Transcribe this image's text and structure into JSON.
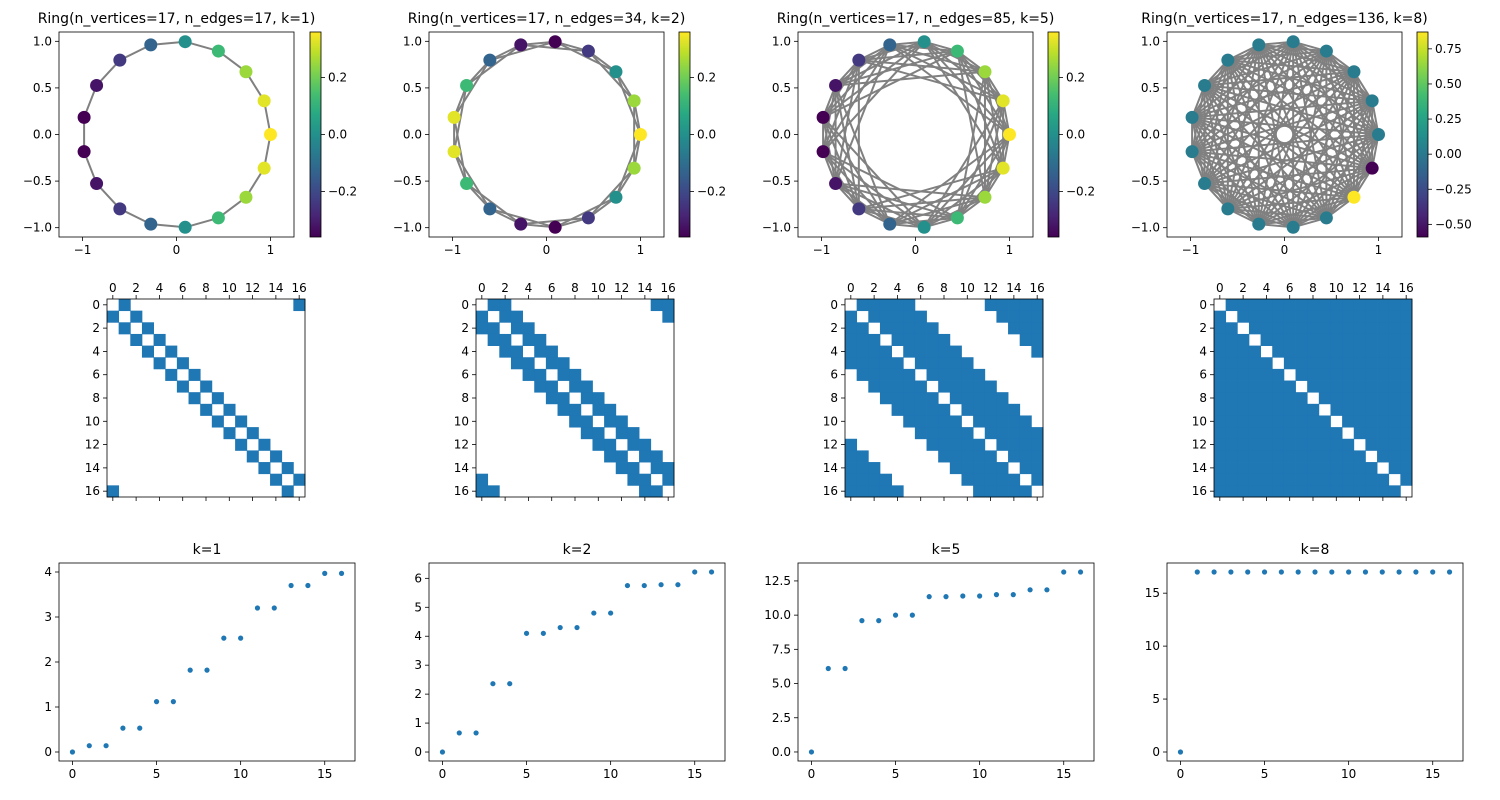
{
  "chart_data": [
    {
      "type": "scatter",
      "subtype": "ring-graph",
      "title": "Ring(n_vertices=17, n_edges=17, k=1)",
      "n_vertices": 17,
      "k": 1,
      "node_values": [
        0.36,
        0.33,
        0.25,
        0.13,
        0.0,
        -0.13,
        -0.24,
        -0.32,
        -0.36,
        -0.36,
        -0.32,
        -0.24,
        -0.13,
        0.0,
        0.13,
        0.25,
        0.33
      ],
      "xlim": [
        -1.25,
        1.25
      ],
      "ylim": [
        -1.1,
        1.1
      ],
      "xticks": [
        "−1",
        "0",
        "1"
      ],
      "yticks": [
        "−1.0",
        "−0.5",
        "0.0",
        "0.5",
        "1.0"
      ],
      "edge_color": "#808080",
      "colormap": "viridis",
      "colorbar": {
        "range": [
          -0.36,
          0.36
        ],
        "ticks": [
          -0.2,
          0.0,
          0.2
        ],
        "tick_labels": [
          "−0.2",
          "0.0",
          "0.2"
        ]
      }
    },
    {
      "type": "scatter",
      "subtype": "ring-graph",
      "title": "Ring(n_vertices=17, n_edges=34, k=2)",
      "n_vertices": 17,
      "k": 2,
      "node_values": [
        0.36,
        0.25,
        0.0,
        -0.24,
        -0.36,
        -0.32,
        -0.13,
        0.13,
        0.33,
        0.33,
        0.13,
        -0.13,
        -0.32,
        -0.36,
        -0.24,
        0.0,
        0.25
      ],
      "xlim": [
        -1.25,
        1.25
      ],
      "ylim": [
        -1.1,
        1.1
      ],
      "xticks": [
        "−1",
        "0",
        "1"
      ],
      "yticks": [
        "−1.0",
        "−0.5",
        "0.0",
        "0.5",
        "1.0"
      ],
      "edge_color": "#808080",
      "colormap": "viridis",
      "colorbar": {
        "range": [
          -0.36,
          0.36
        ],
        "ticks": [
          -0.2,
          0.0,
          0.2
        ],
        "tick_labels": [
          "−0.2",
          "0.0",
          "0.2"
        ]
      }
    },
    {
      "type": "scatter",
      "subtype": "ring-graph",
      "title": "Ring(n_vertices=17, n_edges=85, k=5)",
      "n_vertices": 17,
      "k": 5,
      "node_values": [
        0.36,
        0.33,
        0.25,
        0.13,
        0.0,
        -0.13,
        -0.24,
        -0.32,
        -0.36,
        -0.36,
        -0.32,
        -0.24,
        -0.13,
        0.0,
        0.13,
        0.25,
        0.33
      ],
      "xlim": [
        -1.25,
        1.25
      ],
      "ylim": [
        -1.1,
        1.1
      ],
      "xticks": [
        "−1",
        "0",
        "1"
      ],
      "yticks": [
        "−1.0",
        "−0.5",
        "0.0",
        "0.5",
        "1.0"
      ],
      "edge_color": "#808080",
      "colormap": "viridis",
      "colorbar": {
        "range": [
          -0.36,
          0.36
        ],
        "ticks": [
          -0.2,
          0.0,
          0.2
        ],
        "tick_labels": [
          "−0.2",
          "0.0",
          "0.2"
        ]
      }
    },
    {
      "type": "scatter",
      "subtype": "ring-graph",
      "title": "Ring(n_vertices=17, n_edges=136, k=8)",
      "n_vertices": 17,
      "k": 8,
      "node_values": [
        0.02,
        0.02,
        0.02,
        0.02,
        0.02,
        0.02,
        0.02,
        0.02,
        0.02,
        0.02,
        0.02,
        0.02,
        0.02,
        0.02,
        0.02,
        0.87,
        -0.59
      ],
      "xlim": [
        -1.25,
        1.25
      ],
      "ylim": [
        -1.1,
        1.1
      ],
      "xticks": [
        "−1",
        "0",
        "1"
      ],
      "yticks": [
        "−1.0",
        "−0.5",
        "0.0",
        "0.5",
        "1.0"
      ],
      "edge_color": "#808080",
      "colormap": "viridis",
      "colorbar": {
        "range": [
          -0.59,
          0.87
        ],
        "ticks": [
          -0.5,
          -0.25,
          0.0,
          0.25,
          0.5,
          0.75
        ],
        "tick_labels": [
          "−0.50",
          "−0.25",
          "0.00",
          "0.25",
          "0.50",
          "0.75"
        ]
      }
    },
    {
      "type": "heatmap",
      "subtype": "adjacency-spy",
      "k": 1,
      "n": 17,
      "ticks": [
        "0",
        "2",
        "4",
        "6",
        "8",
        "10",
        "12",
        "14",
        "16"
      ],
      "color": "#1f77b4"
    },
    {
      "type": "heatmap",
      "subtype": "adjacency-spy",
      "k": 2,
      "n": 17,
      "ticks": [
        "0",
        "2",
        "4",
        "6",
        "8",
        "10",
        "12",
        "14",
        "16"
      ],
      "color": "#1f77b4"
    },
    {
      "type": "heatmap",
      "subtype": "adjacency-spy",
      "k": 5,
      "n": 17,
      "ticks": [
        "0",
        "2",
        "4",
        "6",
        "8",
        "10",
        "12",
        "14",
        "16"
      ],
      "color": "#1f77b4"
    },
    {
      "type": "heatmap",
      "subtype": "adjacency-spy",
      "k": 8,
      "n": 17,
      "ticks": [
        "0",
        "2",
        "4",
        "6",
        "8",
        "10",
        "12",
        "14",
        "16"
      ],
      "color": "#1f77b4"
    },
    {
      "type": "scatter",
      "title": "k=1",
      "x": [
        0,
        1,
        2,
        3,
        4,
        5,
        6,
        7,
        8,
        9,
        10,
        11,
        12,
        13,
        14,
        15,
        16
      ],
      "y": [
        0.0,
        0.14,
        0.14,
        0.53,
        0.53,
        1.12,
        1.12,
        1.82,
        1.82,
        2.53,
        2.53,
        3.2,
        3.2,
        3.7,
        3.7,
        3.97,
        3.97
      ],
      "xlim": [
        -0.8,
        16.8
      ],
      "ylim": [
        -0.2,
        4.2
      ],
      "xticks": [
        0,
        5,
        10,
        15
      ],
      "xtick_labels": [
        "0",
        "5",
        "10",
        "15"
      ],
      "yticks": [
        0,
        1,
        2,
        3,
        4
      ],
      "ytick_labels": [
        "0",
        "1",
        "2",
        "3",
        "4"
      ],
      "color": "#1f77b4"
    },
    {
      "type": "scatter",
      "title": "k=2",
      "x": [
        0,
        1,
        2,
        3,
        4,
        5,
        6,
        7,
        8,
        9,
        10,
        11,
        12,
        13,
        14,
        15,
        16
      ],
      "y": [
        0.0,
        0.66,
        0.66,
        2.36,
        2.36,
        4.1,
        4.1,
        4.3,
        4.3,
        4.8,
        4.8,
        5.75,
        5.75,
        5.78,
        5.78,
        6.22,
        6.22
      ],
      "xlim": [
        -0.8,
        16.8
      ],
      "ylim": [
        -0.31,
        6.53
      ],
      "xticks": [
        0,
        5,
        10,
        15
      ],
      "xtick_labels": [
        "0",
        "5",
        "10",
        "15"
      ],
      "yticks": [
        0,
        1,
        2,
        3,
        4,
        5,
        6
      ],
      "ytick_labels": [
        "0",
        "1",
        "2",
        "3",
        "4",
        "5",
        "6"
      ],
      "color": "#1f77b4"
    },
    {
      "type": "scatter",
      "title": "k=5",
      "x": [
        0,
        1,
        2,
        3,
        4,
        5,
        6,
        7,
        8,
        9,
        10,
        11,
        12,
        13,
        14,
        15,
        16
      ],
      "y": [
        0.0,
        6.1,
        6.1,
        9.6,
        9.6,
        10.0,
        10.0,
        11.35,
        11.35,
        11.4,
        11.4,
        11.5,
        11.5,
        11.85,
        11.85,
        13.15,
        13.15
      ],
      "xlim": [
        -0.8,
        16.8
      ],
      "ylim": [
        -0.66,
        13.81
      ],
      "xticks": [
        0,
        5,
        10,
        15
      ],
      "xtick_labels": [
        "0",
        "5",
        "10",
        "15"
      ],
      "yticks": [
        0,
        2.5,
        5,
        7.5,
        10,
        12.5
      ],
      "ytick_labels": [
        "0.0",
        "2.5",
        "5.0",
        "7.5",
        "10.0",
        "12.5"
      ],
      "color": "#1f77b4"
    },
    {
      "type": "scatter",
      "title": "k=8",
      "x": [
        0,
        1,
        2,
        3,
        4,
        5,
        6,
        7,
        8,
        9,
        10,
        11,
        12,
        13,
        14,
        15,
        16
      ],
      "y": [
        0,
        17,
        17,
        17,
        17,
        17,
        17,
        17,
        17,
        17,
        17,
        17,
        17,
        17,
        17,
        17,
        17
      ],
      "xlim": [
        -0.8,
        16.8
      ],
      "ylim": [
        -0.85,
        17.85
      ],
      "xticks": [
        0,
        5,
        10,
        15
      ],
      "xtick_labels": [
        "0",
        "5",
        "10",
        "15"
      ],
      "yticks": [
        0,
        5,
        10,
        15
      ],
      "ytick_labels": [
        "0",
        "5",
        "10",
        "15"
      ],
      "color": "#1f77b4"
    }
  ]
}
